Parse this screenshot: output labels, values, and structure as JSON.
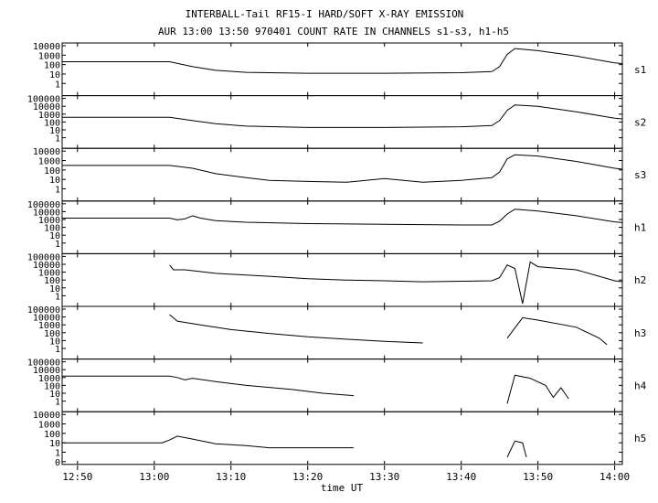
{
  "title": "INTERBALL-Tail RF15-I HARD/SOFT X-RAY EMISSION",
  "subtitle": "AUR 13:00 13:50 970401  COUNT RATE IN CHANNELS s1-s3, h1-h5",
  "chart_data": {
    "type": "line",
    "title": "INTERBALL-Tail RF15-I HARD/SOFT X-RAY EMISSION",
    "subtitle": "AUR 13:00 13:50 970401  COUNT RATE IN CHANNELS s1-s3, h1-h5",
    "xlabel": "time UT",
    "x_ticks": [
      "12:50",
      "13:00",
      "13:10",
      "13:20",
      "13:30",
      "13:40",
      "13:50",
      "14:00"
    ],
    "xlim": [
      "12:48",
      "14:01"
    ],
    "y_scale": "log",
    "grid": false,
    "legend": "none",
    "panels": [
      {
        "name": "s1",
        "ylim": [
          0.1,
          10000
        ],
        "y_ticks": [
          "10000",
          "1000",
          "100",
          "10",
          "1"
        ],
        "x": [
          "12:48",
          "13:02",
          "13:05",
          "13:08",
          "13:12",
          "13:20",
          "13:30",
          "13:40",
          "13:44",
          "13:45",
          "13:46",
          "13:47",
          "13:50",
          "13:55",
          "14:00",
          "14:01"
        ],
        "values": [
          200,
          200,
          60,
          25,
          15,
          12,
          12,
          14,
          18,
          60,
          1200,
          5000,
          3000,
          800,
          150,
          130
        ]
      },
      {
        "name": "s2",
        "ylim": [
          0.1,
          100000
        ],
        "y_ticks": [
          "100000",
          "10000",
          "1000",
          "100",
          "10",
          "1"
        ],
        "x": [
          "12:48",
          "13:02",
          "13:05",
          "13:08",
          "13:12",
          "13:20",
          "13:30",
          "13:40",
          "13:44",
          "13:45",
          "13:46",
          "13:47",
          "13:50",
          "13:55",
          "14:00",
          "14:01"
        ],
        "values": [
          400,
          400,
          150,
          60,
          30,
          20,
          20,
          25,
          35,
          150,
          3000,
          15000,
          10000,
          2000,
          300,
          250
        ]
      },
      {
        "name": "s3",
        "ylim": [
          0.1,
          10000
        ],
        "y_ticks": [
          "10000",
          "1000",
          "100",
          "10",
          "1"
        ],
        "x": [
          "12:48",
          "13:02",
          "13:05",
          "13:08",
          "13:12",
          "13:15",
          "13:20",
          "13:25",
          "13:30",
          "13:35",
          "13:40",
          "13:44",
          "13:45",
          "13:46",
          "13:47",
          "13:50",
          "13:55",
          "14:00",
          "14:01"
        ],
        "values": [
          300,
          300,
          150,
          40,
          15,
          8,
          6,
          5,
          12,
          5,
          8,
          15,
          60,
          1500,
          4000,
          3000,
          800,
          150,
          120
        ]
      },
      {
        "name": "h1",
        "ylim": [
          0.1,
          100000
        ],
        "y_ticks": [
          "100000",
          "10000",
          "1000",
          "100",
          "10",
          "1"
        ],
        "x": [
          "12:48",
          "13:02",
          "13:03",
          "13:04",
          "13:05",
          "13:06",
          "13:08",
          "13:12",
          "13:20",
          "13:30",
          "13:40",
          "13:44",
          "13:45",
          "13:46",
          "13:47",
          "13:50",
          "13:55",
          "14:00",
          "14:01"
        ],
        "values": [
          1500,
          1500,
          900,
          1200,
          3000,
          1500,
          700,
          450,
          300,
          250,
          200,
          200,
          600,
          5000,
          20000,
          12000,
          3000,
          500,
          400
        ]
      },
      {
        "name": "h2",
        "ylim": [
          0.1,
          100000
        ],
        "y_ticks": [
          "100000",
          "10000",
          "1000",
          "100",
          "10",
          "1"
        ],
        "x": [
          "12:48",
          "13:01.5",
          "13:02",
          "13:02.5",
          "13:04",
          "13:08",
          "13:15",
          "13:20",
          "13:25",
          "13:30",
          "13:35",
          "13:40",
          "13:44",
          "13:45",
          "13:46",
          "13:47",
          "13:48",
          "13:49",
          "13:50",
          "13:55",
          "14:00",
          "14:01"
        ],
        "values": [
          null,
          null,
          8000,
          2000,
          2000,
          700,
          300,
          150,
          100,
          80,
          60,
          70,
          80,
          200,
          8000,
          3000,
          0.1,
          20000,
          5000,
          2000,
          80,
          60
        ]
      },
      {
        "name": "h3",
        "ylim": [
          0.1,
          100000
        ],
        "y_ticks": [
          "100000",
          "10000",
          "1000",
          "100",
          "10",
          "1"
        ],
        "x": [
          "12:48",
          "13:01.5",
          "13:02",
          "13:03",
          "13:06",
          "13:10",
          "13:15",
          "13:20",
          "13:25",
          "13:30",
          "13:35",
          "13:35.5",
          "13:45.5",
          "13:46",
          "13:48",
          "13:50",
          "13:55",
          "13:58",
          "13:59"
        ],
        "values": [
          null,
          null,
          20000,
          3000,
          1000,
          250,
          80,
          30,
          15,
          8,
          5,
          null,
          null,
          20,
          8000,
          4000,
          500,
          20,
          3
        ]
      },
      {
        "name": "h4",
        "ylim": [
          0.1,
          100000
        ],
        "y_ticks": [
          "100000",
          "10000",
          "1000",
          "100",
          "10",
          "1"
        ],
        "x": [
          "12:48",
          "13:02",
          "13:03",
          "13:04",
          "13:05",
          "13:08",
          "13:12",
          "13:18",
          "13:22",
          "13:26",
          "13:26.5",
          "13:45.5",
          "13:46",
          "13:47",
          "13:49",
          "13:51",
          "13:52",
          "13:53",
          "13:54"
        ],
        "values": [
          1500,
          1500,
          1000,
          500,
          800,
          300,
          100,
          30,
          10,
          5,
          null,
          null,
          0.5,
          2000,
          800,
          100,
          3,
          50,
          2
        ]
      },
      {
        "name": "h5",
        "ylim": [
          0.1,
          10000
        ],
        "y_ticks": [
          "10000",
          "1000",
          "100",
          "10",
          "1",
          "0"
        ],
        "x": [
          "12:48",
          "13:01",
          "13:02",
          "13:03",
          "13:05",
          "13:08",
          "13:12",
          "13:15",
          "13:20",
          "13:26",
          "13:26.5",
          "13:45.5",
          "13:46",
          "13:47",
          "13:48",
          "13:48.5"
        ],
        "values": [
          10,
          10,
          20,
          50,
          25,
          8,
          5,
          3,
          3,
          3,
          null,
          null,
          0.3,
          15,
          10,
          0.3
        ]
      }
    ]
  },
  "colors": {
    "line": "#000000",
    "background": "#ffffff"
  }
}
